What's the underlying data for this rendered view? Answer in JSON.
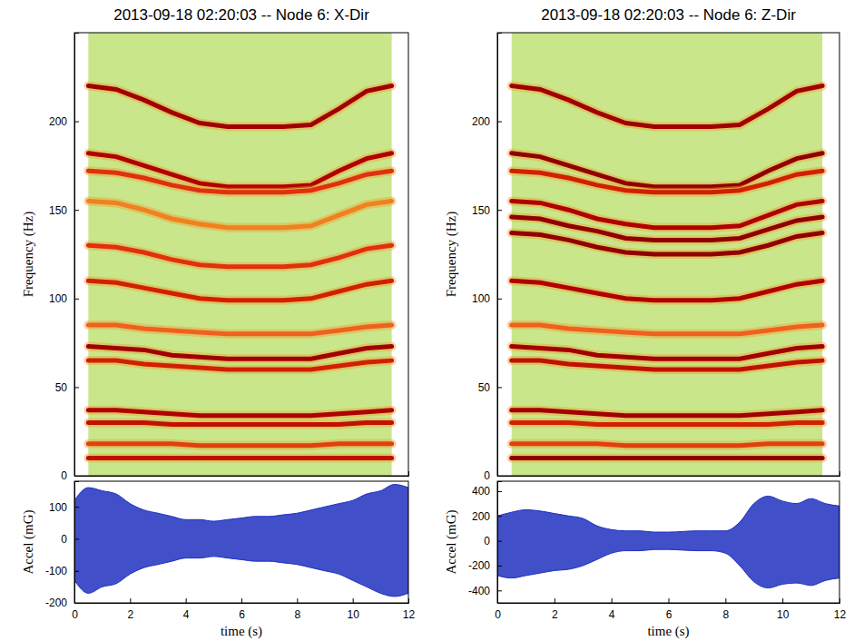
{
  "chart_data": [
    {
      "type": "spectrogram",
      "title": "2013-09-18 02:20:03 -- Node 6: X-Dir",
      "ylabel": "Frequency (Hz)",
      "xlim": [
        0,
        12
      ],
      "ylim": [
        0,
        250
      ],
      "yticks": [
        0,
        50,
        100,
        150,
        200
      ],
      "tick_labels": "y",
      "x": [
        0.5,
        1.5,
        2.5,
        3.5,
        4.5,
        5.5,
        6.5,
        7.5,
        8.5,
        9.5,
        10.5,
        11.4
      ],
      "series": [
        {
          "color": "#a00000",
          "values": [
            220,
            218,
            212,
            205,
            199,
            197,
            197,
            197,
            198,
            207,
            217,
            220
          ]
        },
        {
          "color": "#b00000",
          "values": [
            182,
            180,
            175,
            170,
            165,
            163,
            163,
            163,
            164,
            172,
            179,
            182
          ]
        },
        {
          "color": "#e03010",
          "values": [
            172,
            171,
            168,
            164,
            161,
            160,
            160,
            160,
            161,
            165,
            170,
            172
          ]
        },
        {
          "color": "#f08020",
          "values": [
            155,
            154,
            150,
            145,
            142,
            140,
            140,
            140,
            141,
            147,
            153,
            155
          ]
        },
        {
          "color": "#e03010",
          "values": [
            130,
            129,
            126,
            122,
            119,
            118,
            118,
            118,
            119,
            123,
            128,
            130
          ]
        },
        {
          "color": "#d02000",
          "values": [
            110,
            109,
            106,
            103,
            100,
            99,
            99,
            99,
            100,
            104,
            108,
            110
          ]
        },
        {
          "color": "#f06020",
          "values": [
            85,
            85,
            83,
            82,
            81,
            80,
            80,
            80,
            80,
            82,
            84,
            85
          ]
        },
        {
          "color": "#a00000",
          "values": [
            73,
            72,
            71,
            68,
            67,
            66,
            66,
            66,
            66,
            69,
            72,
            73
          ]
        },
        {
          "color": "#d02000",
          "values": [
            65,
            65,
            63,
            62,
            61,
            60,
            60,
            60,
            60,
            62,
            64,
            65
          ]
        },
        {
          "color": "#b00000",
          "values": [
            37,
            37,
            36,
            35,
            34,
            34,
            34,
            34,
            34,
            35,
            36,
            37
          ]
        },
        {
          "color": "#c01000",
          "values": [
            30,
            30,
            30,
            29,
            29,
            29,
            29,
            29,
            29,
            29,
            30,
            30
          ]
        },
        {
          "color": "#e04010",
          "values": [
            18,
            18,
            18,
            18,
            17,
            17,
            17,
            17,
            17,
            18,
            18,
            18
          ]
        },
        {
          "color": "#c01000",
          "values": [
            10,
            10,
            10,
            10,
            10,
            10,
            10,
            10,
            10,
            10,
            10,
            10
          ]
        }
      ]
    },
    {
      "type": "envelope",
      "xlabel": "time (s)",
      "ylabel": "Accel (mG)",
      "color": "#2030c0",
      "xlim": [
        0,
        12
      ],
      "xticks": [
        0,
        2,
        4,
        6,
        8,
        10,
        12
      ],
      "ylim": [
        -200,
        180
      ],
      "yticks": [
        -200,
        -100,
        0,
        100
      ],
      "x": [
        0,
        0.5,
        1,
        1.5,
        2,
        2.5,
        3,
        3.5,
        4,
        4.5,
        5,
        5.5,
        6,
        6.5,
        7,
        7.5,
        8,
        8.5,
        9,
        9.5,
        10,
        10.5,
        11,
        11.5,
        12
      ],
      "upper": [
        120,
        160,
        150,
        140,
        110,
        90,
        80,
        70,
        60,
        60,
        55,
        60,
        65,
        70,
        70,
        75,
        80,
        90,
        100,
        110,
        120,
        140,
        150,
        170,
        160
      ],
      "lower": [
        -130,
        -170,
        -150,
        -140,
        -110,
        -90,
        -80,
        -70,
        -60,
        -60,
        -55,
        -60,
        -65,
        -70,
        -70,
        -75,
        -80,
        -90,
        -100,
        -110,
        -130,
        -150,
        -170,
        -180,
        -170
      ]
    },
    {
      "type": "spectrogram",
      "title": "2013-09-18 02:20:03 -- Node 6: Z-Dir",
      "ylabel": "Frequency (Hz)",
      "xlim": [
        0,
        12
      ],
      "ylim": [
        0,
        250
      ],
      "yticks": [
        0,
        50,
        100,
        150,
        200
      ],
      "tick_labels": "y",
      "x": [
        0.5,
        1.5,
        2.5,
        3.5,
        4.5,
        5.5,
        6.5,
        7.5,
        8.5,
        9.5,
        10.5,
        11.4
      ],
      "series": [
        {
          "color": "#a00000",
          "values": [
            220,
            218,
            212,
            205,
            199,
            197,
            197,
            197,
            198,
            207,
            217,
            220
          ]
        },
        {
          "color": "#900000",
          "values": [
            182,
            180,
            175,
            170,
            165,
            163,
            163,
            163,
            164,
            172,
            179,
            182
          ]
        },
        {
          "color": "#d02000",
          "values": [
            172,
            171,
            168,
            164,
            161,
            160,
            160,
            160,
            161,
            165,
            170,
            172
          ]
        },
        {
          "color": "#b00000",
          "values": [
            155,
            154,
            150,
            145,
            142,
            140,
            140,
            140,
            141,
            147,
            153,
            155
          ]
        },
        {
          "color": "#900000",
          "values": [
            146,
            145,
            141,
            138,
            134,
            133,
            133,
            133,
            134,
            139,
            144,
            146
          ]
        },
        {
          "color": "#900000",
          "values": [
            137,
            136,
            133,
            129,
            126,
            125,
            125,
            125,
            126,
            130,
            135,
            137
          ]
        },
        {
          "color": "#b00000",
          "values": [
            110,
            109,
            106,
            103,
            100,
            99,
            99,
            99,
            100,
            104,
            108,
            110
          ]
        },
        {
          "color": "#f06020",
          "values": [
            85,
            85,
            83,
            82,
            81,
            80,
            80,
            80,
            80,
            82,
            84,
            85
          ]
        },
        {
          "color": "#a00000",
          "values": [
            73,
            72,
            71,
            68,
            67,
            66,
            66,
            66,
            66,
            69,
            72,
            73
          ]
        },
        {
          "color": "#c01000",
          "values": [
            65,
            65,
            63,
            62,
            61,
            60,
            60,
            60,
            60,
            62,
            64,
            65
          ]
        },
        {
          "color": "#a00000",
          "values": [
            37,
            37,
            36,
            35,
            34,
            34,
            34,
            34,
            34,
            35,
            36,
            37
          ]
        },
        {
          "color": "#d02000",
          "values": [
            30,
            30,
            30,
            29,
            29,
            29,
            29,
            29,
            29,
            29,
            30,
            30
          ]
        },
        {
          "color": "#e04010",
          "values": [
            18,
            18,
            18,
            18,
            17,
            17,
            17,
            17,
            17,
            18,
            18,
            18
          ]
        },
        {
          "color": "#900000",
          "values": [
            10,
            10,
            10,
            10,
            10,
            10,
            10,
            10,
            10,
            10,
            10,
            10
          ]
        }
      ]
    },
    {
      "type": "envelope",
      "xlabel": "time (s)",
      "ylabel": "Accel (mG)",
      "color": "#2030c0",
      "xlim": [
        0,
        12
      ],
      "xticks": [
        0,
        2,
        4,
        6,
        8,
        10,
        12
      ],
      "ylim": [
        -500,
        480
      ],
      "yticks": [
        -400,
        -200,
        0,
        200,
        400
      ],
      "x": [
        0,
        0.5,
        1,
        1.5,
        2,
        2.5,
        3,
        3.5,
        4,
        4.5,
        5,
        5.5,
        6,
        6.5,
        7,
        7.5,
        8,
        8.5,
        9,
        9.5,
        10,
        10.5,
        11,
        11.5,
        12
      ],
      "upper": [
        200,
        230,
        250,
        240,
        220,
        200,
        180,
        120,
        90,
        80,
        80,
        70,
        70,
        75,
        80,
        80,
        80,
        150,
        300,
        360,
        320,
        300,
        340,
        300,
        280
      ],
      "lower": [
        -280,
        -300,
        -280,
        -260,
        -240,
        -230,
        -200,
        -150,
        -100,
        -80,
        -80,
        -70,
        -70,
        -75,
        -80,
        -80,
        -100,
        -200,
        -330,
        -380,
        -350,
        -340,
        -360,
        -320,
        -300
      ]
    }
  ]
}
